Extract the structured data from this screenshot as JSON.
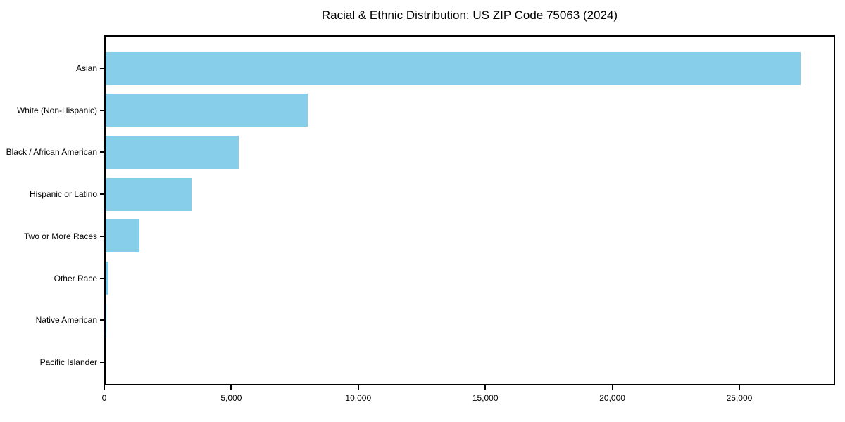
{
  "chart_data": {
    "type": "bar",
    "orientation": "horizontal",
    "title": "Racial & Ethnic Distribution: US ZIP Code 75063 (2024)",
    "categories": [
      "Asian",
      "White (Non-Hispanic)",
      "Black / African American",
      "Hispanic or Latino",
      "Two or More Races",
      "Other Race",
      "Native American",
      "Pacific Islander"
    ],
    "values": [
      27400,
      8000,
      5300,
      3450,
      1390,
      175,
      70,
      15
    ],
    "xlabel": "",
    "ylabel": "",
    "xlim": [
      0,
      28770
    ],
    "x_ticks": [
      0,
      5000,
      10000,
      15000,
      20000,
      25000
    ],
    "x_tick_labels": [
      "0",
      "5,000",
      "10,000",
      "15,000",
      "20,000",
      "25,000"
    ],
    "bar_color": "#87CEEB",
    "axis_color": "#000000",
    "grid": false,
    "legend": null
  }
}
